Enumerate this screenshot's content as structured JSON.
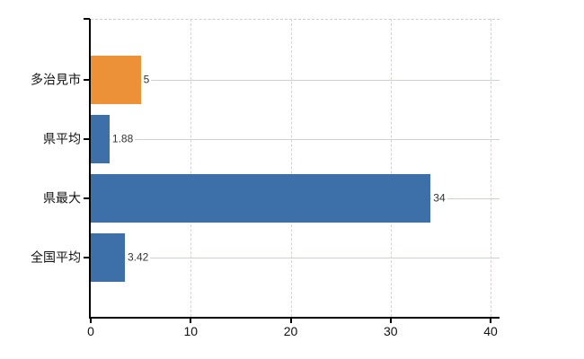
{
  "chart_data": {
    "type": "bar",
    "orientation": "horizontal",
    "title": "",
    "categories": [
      "多治見市",
      "県平均",
      "県最大",
      "全国平均"
    ],
    "values": [
      5,
      1.88,
      34,
      3.42
    ],
    "value_labels": [
      "5",
      "1.88",
      "34",
      "3.42"
    ],
    "bar_colors": [
      "#ec9138",
      "#3d6fa8",
      "#3d6fa8",
      "#3d6fa8"
    ],
    "xlim": [
      0,
      40
    ],
    "x_ticks": [
      0,
      10,
      20,
      30,
      40
    ],
    "x_tick_labels": [
      "0",
      "10",
      "20",
      "30",
      "40"
    ],
    "legend": "none",
    "grid": {
      "vertical": "dashed",
      "horizontal": "solid",
      "top_border": "dashed"
    }
  },
  "colors": {
    "bar_orange": "#ec9138",
    "bar_blue": "#3d6fa8",
    "axis": "#000000",
    "grid_vertical": "#d8d2d2",
    "grid_horizontal": "#ccd5cc",
    "plot_border_top": "#d0cccc",
    "tick_label": "#111111",
    "value_label": "#333333",
    "background": "#ffffff"
  }
}
